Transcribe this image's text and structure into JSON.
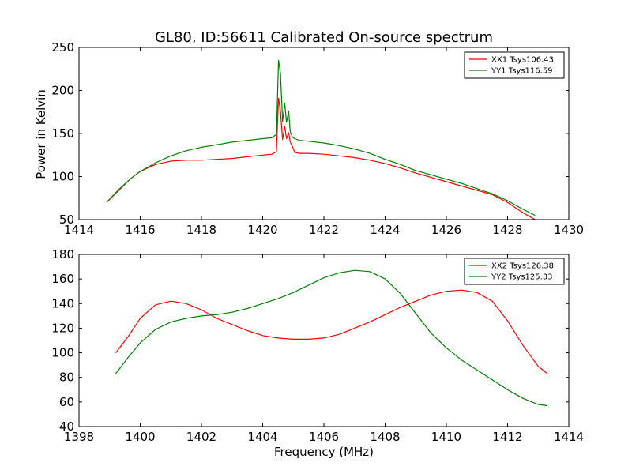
{
  "chart_data": [
    {
      "type": "line",
      "title": "GL80, ID:56611 Calibrated On-source spectrum",
      "xlabel": "",
      "ylabel": "Power in Kelvin",
      "xlim": [
        1414,
        1430
      ],
      "ylim": [
        50,
        250
      ],
      "xticks": [
        1414,
        1416,
        1418,
        1420,
        1422,
        1424,
        1426,
        1428,
        1430
      ],
      "yticks": [
        50,
        100,
        150,
        200,
        250
      ],
      "grid": false,
      "legend_position": "top-right",
      "series": [
        {
          "name": "XX1 Tsys106.43",
          "color": "#ff0000",
          "x": [
            1414.9,
            1415.3,
            1415.7,
            1416.0,
            1416.5,
            1417.0,
            1417.5,
            1418.0,
            1418.5,
            1419.0,
            1419.5,
            1420.0,
            1420.3,
            1420.45,
            1420.52,
            1420.58,
            1420.65,
            1420.72,
            1420.78,
            1420.85,
            1420.9,
            1420.97,
            1421.05,
            1421.2,
            1421.5,
            1422.0,
            1422.5,
            1423.0,
            1423.5,
            1424.0,
            1424.5,
            1425.0,
            1425.5,
            1426.0,
            1426.5,
            1427.0,
            1427.5,
            1428.0,
            1428.5,
            1428.9
          ],
          "y": [
            70,
            84,
            98,
            106,
            114,
            118,
            119,
            119,
            120,
            121,
            123,
            125,
            126,
            129,
            191,
            176,
            143,
            158,
            144,
            151,
            140,
            135,
            128,
            127,
            127,
            126,
            124,
            122,
            119,
            115,
            110,
            104,
            99,
            94,
            89,
            84,
            79,
            70,
            58,
            50
          ]
        },
        {
          "name": "YY1 Tsys116.59",
          "color": "#008000",
          "x": [
            1414.9,
            1415.3,
            1415.7,
            1416.0,
            1416.5,
            1417.0,
            1417.5,
            1418.0,
            1418.5,
            1419.0,
            1419.5,
            1420.0,
            1420.3,
            1420.45,
            1420.52,
            1420.58,
            1420.65,
            1420.72,
            1420.78,
            1420.85,
            1420.9,
            1420.97,
            1421.05,
            1421.2,
            1421.5,
            1422.0,
            1422.5,
            1423.0,
            1423.5,
            1424.0,
            1424.5,
            1425.0,
            1425.5,
            1426.0,
            1426.5,
            1427.0,
            1427.5,
            1428.0,
            1428.5,
            1428.9
          ],
          "y": [
            70,
            85,
            98,
            106,
            116,
            124,
            130,
            134,
            137,
            140,
            142,
            144,
            145,
            149,
            235,
            220,
            164,
            185,
            163,
            176,
            152,
            146,
            144,
            142,
            141,
            139,
            136,
            132,
            127,
            120,
            114,
            107,
            102,
            97,
            92,
            86,
            80,
            72,
            62,
            55
          ]
        }
      ]
    },
    {
      "type": "line",
      "title": "",
      "xlabel": "Frequency (MHz)",
      "ylabel": "",
      "xlim": [
        1398,
        1414
      ],
      "ylim": [
        40,
        180
      ],
      "xticks": [
        1398,
        1400,
        1402,
        1404,
        1406,
        1408,
        1410,
        1412,
        1414
      ],
      "yticks": [
        40,
        60,
        80,
        100,
        120,
        140,
        160,
        180
      ],
      "grid": false,
      "legend_position": "top-right",
      "series": [
        {
          "name": "XX2 Tsys126.38",
          "color": "#ff0000",
          "x": [
            1399.2,
            1399.6,
            1400.0,
            1400.5,
            1401.0,
            1401.5,
            1402.0,
            1402.5,
            1403.0,
            1403.5,
            1404.0,
            1404.5,
            1405.0,
            1405.5,
            1406.0,
            1406.5,
            1407.0,
            1407.5,
            1408.0,
            1408.5,
            1409.0,
            1409.5,
            1410.0,
            1410.5,
            1411.0,
            1411.5,
            1412.0,
            1412.5,
            1413.0,
            1413.3
          ],
          "y": [
            100,
            113,
            128,
            139,
            142,
            140,
            135,
            128,
            123,
            118,
            114,
            112,
            111,
            111,
            112,
            115,
            120,
            125,
            131,
            137,
            142,
            147,
            150,
            151,
            149,
            142,
            126,
            106,
            89,
            83
          ]
        },
        {
          "name": "YY2 Tsys125.33",
          "color": "#008000",
          "x": [
            1399.2,
            1399.6,
            1400.0,
            1400.5,
            1401.0,
            1401.5,
            1402.0,
            1402.5,
            1403.0,
            1403.5,
            1404.0,
            1404.5,
            1405.0,
            1405.5,
            1406.0,
            1406.5,
            1407.0,
            1407.5,
            1408.0,
            1408.5,
            1409.0,
            1409.5,
            1410.0,
            1410.5,
            1411.0,
            1411.5,
            1412.0,
            1412.5,
            1413.0,
            1413.3
          ],
          "y": [
            83,
            96,
            108,
            119,
            125,
            128,
            130,
            131,
            133,
            136,
            140,
            144,
            149,
            155,
            161,
            165,
            167,
            166,
            160,
            148,
            132,
            116,
            104,
            94,
            86,
            78,
            70,
            63,
            58,
            57
          ]
        }
      ]
    }
  ]
}
